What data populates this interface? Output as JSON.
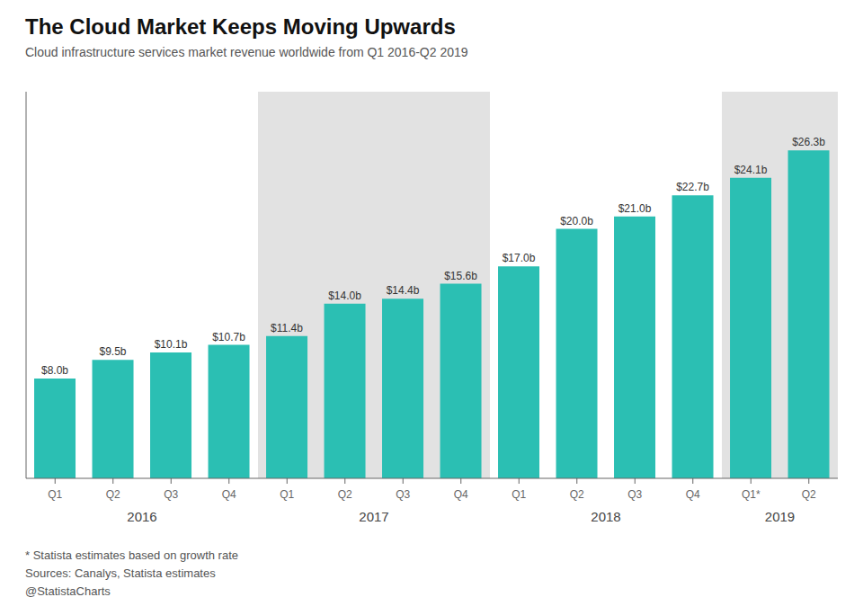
{
  "chart_data": {
    "type": "bar",
    "title": "The Cloud Market Keeps Moving Upwards",
    "subtitle": "Cloud infrastructure services market revenue worldwide from Q1 2016-Q2 2019",
    "categories": [
      "Q1",
      "Q2",
      "Q3",
      "Q4",
      "Q1",
      "Q2",
      "Q3",
      "Q4",
      "Q1",
      "Q2",
      "Q3",
      "Q4",
      "Q1*",
      "Q2"
    ],
    "groups": [
      {
        "label": "2016",
        "size": 4
      },
      {
        "label": "2017",
        "size": 4
      },
      {
        "label": "2018",
        "size": 4
      },
      {
        "label": "2019",
        "size": 2
      }
    ],
    "values": [
      8.0,
      9.5,
      10.1,
      10.7,
      11.4,
      14.0,
      14.4,
      15.6,
      17.0,
      20.0,
      21.0,
      22.7,
      24.1,
      26.3
    ],
    "value_labels": [
      "$8.0b",
      "$9.5b",
      "$10.1b",
      "$10.7b",
      "$11.4b",
      "$14.0b",
      "$14.4b",
      "$15.6b",
      "$17.0b",
      "$20.0b",
      "$21.0b",
      "$22.7b",
      "$24.1b",
      "$26.3b"
    ],
    "color": "#2bbfb3",
    "ylim": [
      0,
      31
    ],
    "grid": false,
    "data_labels": true,
    "tick_labels": "x",
    "annotations": [
      "* Statista estimates based on growth rate",
      "Sources: Canalys, Statista estimates",
      "@StatistaCharts"
    ]
  }
}
